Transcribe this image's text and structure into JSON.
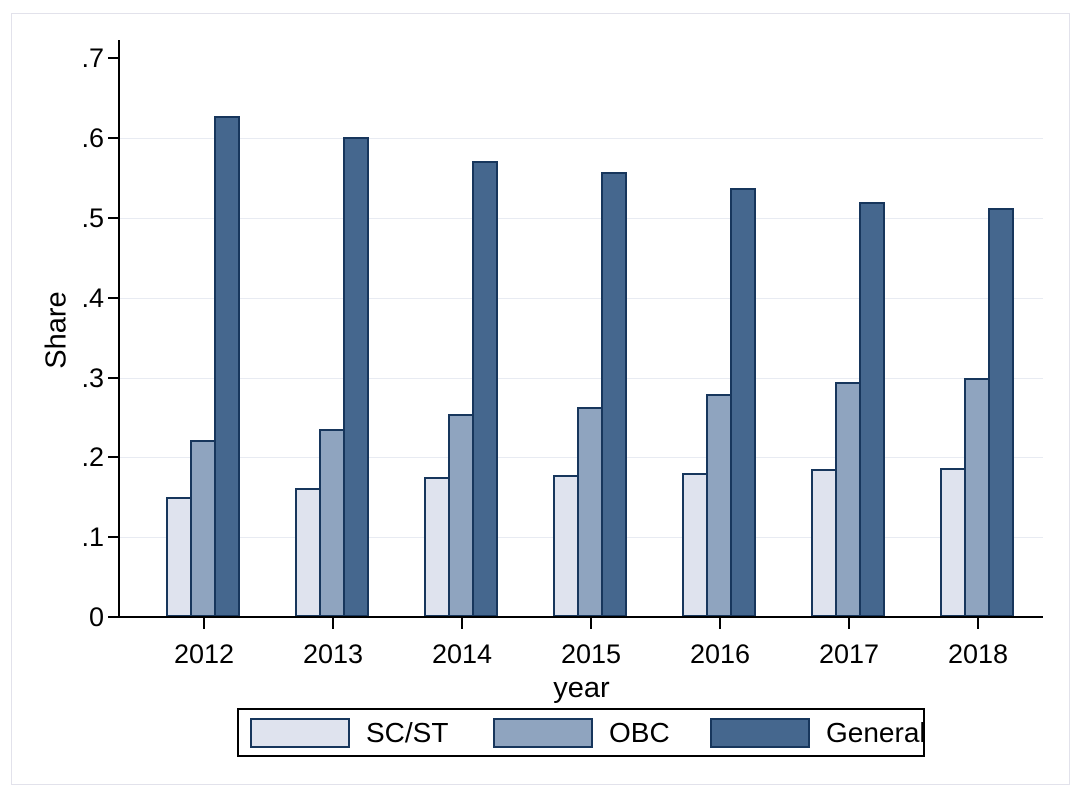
{
  "chart_data": {
    "type": "bar",
    "title": "",
    "xlabel": "year",
    "ylabel": "Share",
    "categories": [
      "2012",
      "2013",
      "2014",
      "2015",
      "2016",
      "2017",
      "2018"
    ],
    "series": [
      {
        "name": "SC/ST",
        "color": "#dfe3ee",
        "values": [
          0.15,
          0.162,
          0.175,
          0.178,
          0.181,
          0.186,
          0.187
        ]
      },
      {
        "name": "OBC",
        "color": "#8fa4bf",
        "values": [
          0.222,
          0.236,
          0.254,
          0.263,
          0.28,
          0.294,
          0.3
        ]
      },
      {
        "name": "General",
        "color": "#45678e",
        "values": [
          0.628,
          0.602,
          0.571,
          0.558,
          0.538,
          0.52,
          0.512
        ]
      }
    ],
    "ylim": [
      0,
      0.7
    ],
    "ytick_values": [
      0,
      0.1,
      0.2,
      0.3,
      0.4,
      0.5,
      0.6,
      0.7
    ],
    "ytick_labels": [
      "0",
      ".1",
      ".2",
      ".3",
      ".4",
      ".5",
      ".6",
      ".7"
    ],
    "grid": "horizontal-major",
    "gridline_values": [
      0.1,
      0.2,
      0.3,
      0.4,
      0.5,
      0.6
    ],
    "legend_position": "bottom"
  },
  "colors": {
    "background": "#ffffff",
    "bar_border": "#17365c",
    "gridline": "#e8ebf2",
    "axis": "#000000",
    "region_border": "#e2e2eb",
    "legend_border": "#000000"
  }
}
